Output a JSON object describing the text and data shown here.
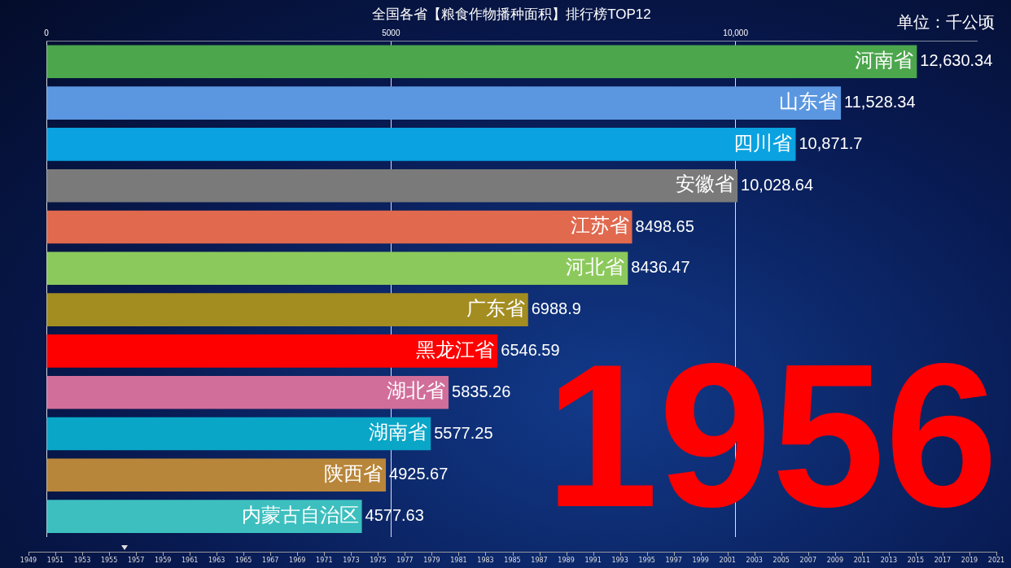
{
  "chart_data": {
    "type": "bar",
    "orientation": "horizontal",
    "title": "全国各省【粮食作物播种面积】排行榜TOP12",
    "categories": [
      "河南省",
      "山东省",
      "四川省",
      "安徽省",
      "江苏省",
      "河北省",
      "广东省",
      "黑龙江省",
      "湖北省",
      "湖南省",
      "陕西省",
      "内蒙古自治区"
    ],
    "values": [
      12630.34,
      11528.34,
      10871.7,
      10028.64,
      8498.65,
      8436.47,
      6988.9,
      6546.59,
      5835.26,
      5577.25,
      4925.67,
      4577.63
    ],
    "value_labels": [
      "12,630.34",
      "11,528.34",
      "10,871.7",
      "10,028.64",
      "8498.65",
      "8436.47",
      "6988.9",
      "6546.59",
      "5835.26",
      "5577.25",
      "4925.67",
      "4577.63"
    ],
    "colors": [
      "#4ca64c",
      "#5b97e0",
      "#0aa2e0",
      "#7a7a7a",
      "#e0694e",
      "#8cc95c",
      "#a38d21",
      "#ff0000",
      "#d16e9a",
      "#0aa6c8",
      "#b8863a",
      "#3dbfbf"
    ],
    "xlim": [
      0,
      13500
    ],
    "xticks": [
      0,
      5000,
      {
        "value": 10000,
        "label": "10,000"
      }
    ],
    "grid": "x",
    "legend": false,
    "tick_labels": "x",
    "annotations": [
      "单位：千公顷",
      "1956",
      "1949",
      "1951",
      "1953",
      "1955",
      "1957",
      "1959",
      "1961",
      "1963",
      "1965",
      "1967",
      "1969",
      "1971",
      "1973",
      "1975",
      "1977",
      "1979",
      "1981",
      "1983",
      "1985",
      "1987",
      "1989",
      "1991",
      "1993",
      "1995",
      "1997",
      "1999",
      "2001",
      "2003",
      "2005",
      "2007",
      "2009",
      "2011",
      "2013",
      "2015",
      "2017",
      "2019",
      "2021"
    ]
  }
}
